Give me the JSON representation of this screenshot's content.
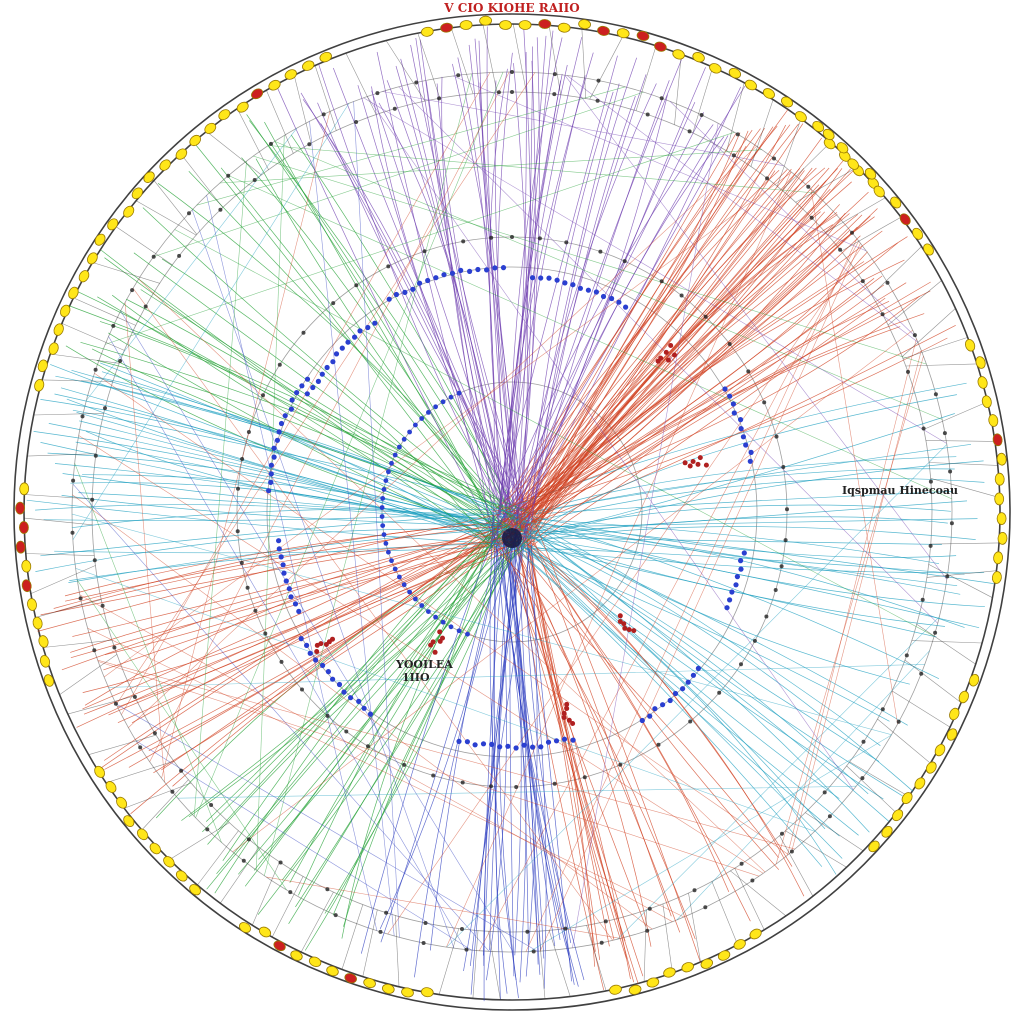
{
  "diagram": {
    "title": "V CIO KIOHE RAIIO",
    "labels": {
      "right": "Iqspmau Hinecoau",
      "left_line1": "YOOILEA",
      "left_line2": "1IIO"
    },
    "colors": {
      "ring": "#2b2b2b",
      "outer_node_fill": "#ffe619",
      "outer_node_stroke": "#9a7a00",
      "outer_node_red": "#cc2020",
      "inner_node": "#2a3fd0",
      "red_node": "#b02020",
      "link_red": "#d04020",
      "link_green": "#22a033",
      "link_blue": "#3040c0",
      "link_purple": "#7040b0",
      "link_cyan": "#20a0c0",
      "title": "#c02020",
      "hub": "#151540"
    }
  }
}
